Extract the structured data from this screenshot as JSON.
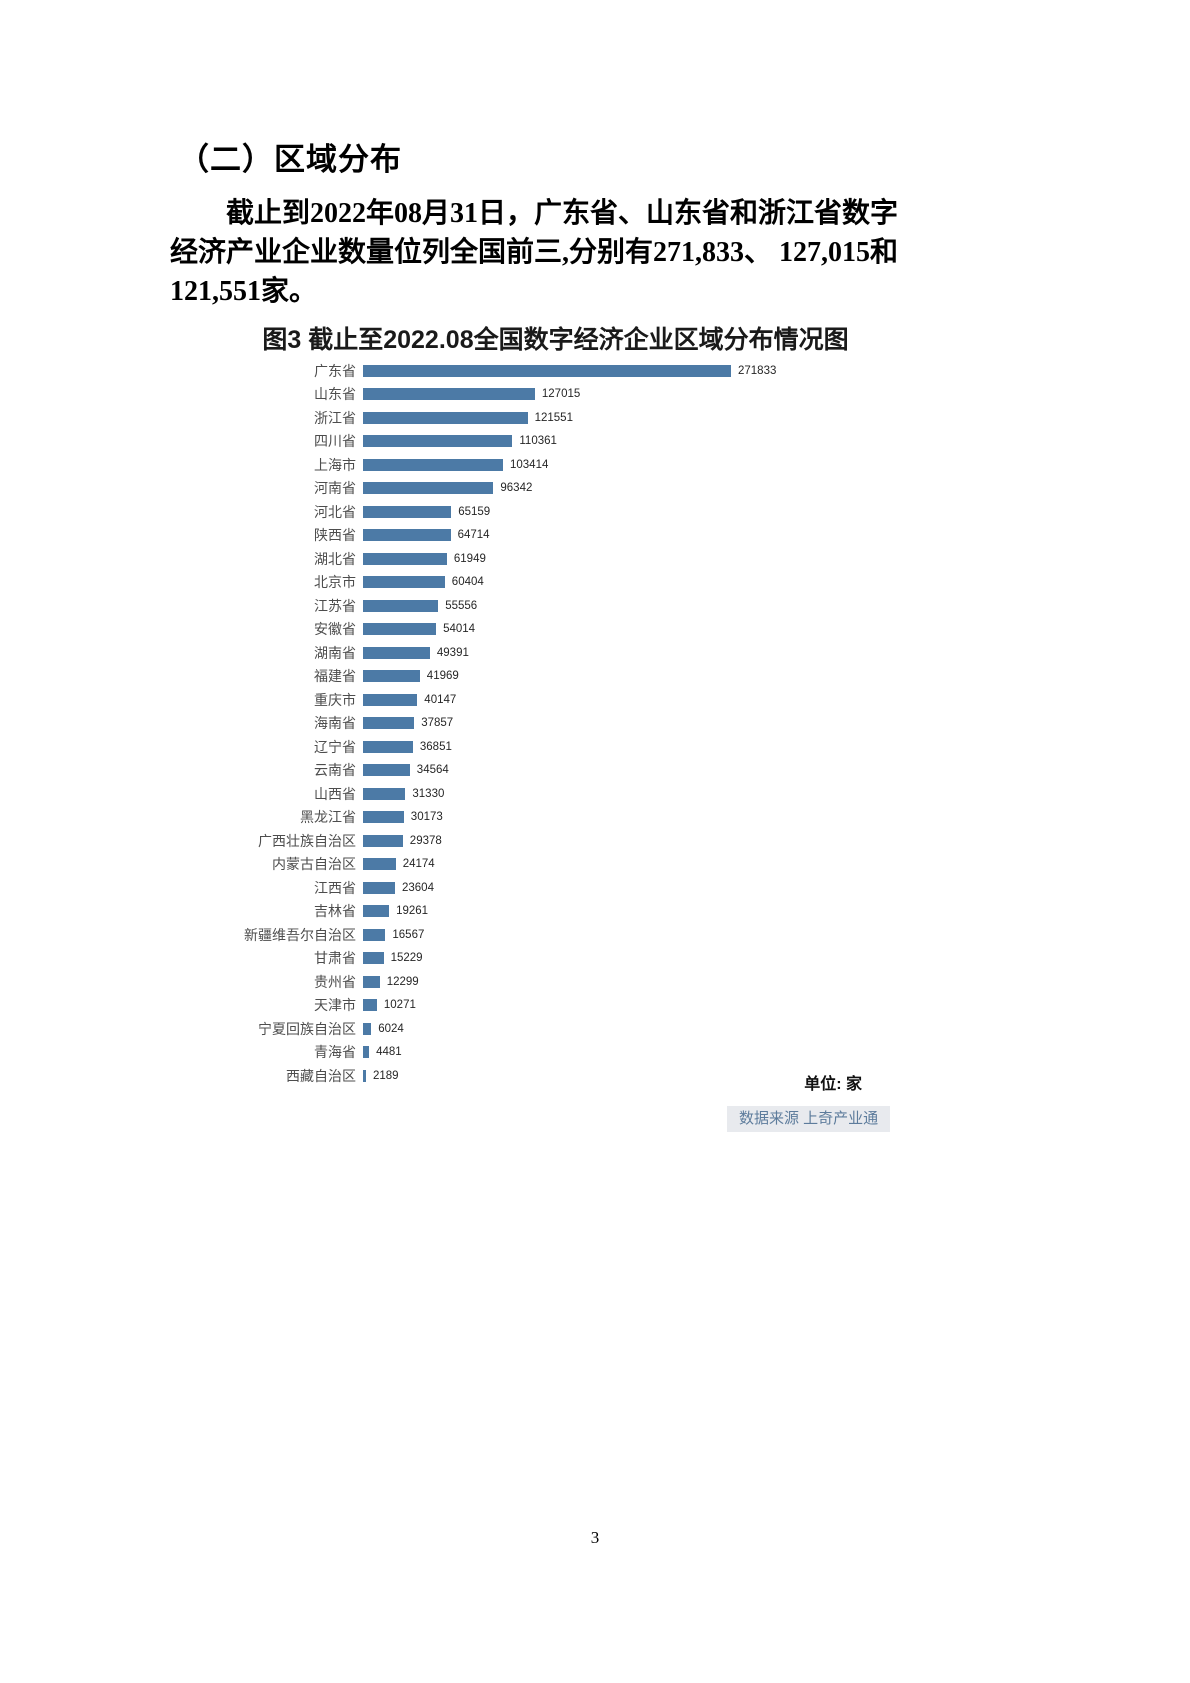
{
  "page": {
    "number": "3"
  },
  "section": {
    "heading": "（二）区域分布",
    "paragraph_lines": [
      "截止到2022年08月31日，广东省、山东省和浙江省数字",
      "经济产业企业数量位列全国前三,分别有271,833、 127,015和",
      "121,551家。"
    ]
  },
  "chart": {
    "title": "图3 截止至2022.08全国数字经济企业区域分布情况图",
    "unit_label": "单位: 家",
    "source_label": "数据来源 上奇产业通",
    "bar_color": "#4c7aa6"
  },
  "chart_data": {
    "type": "bar",
    "orientation": "horizontal",
    "title": "图3 截止至2022.08全国数字经济企业区域分布情况图",
    "categories": [
      "广东省",
      "山东省",
      "浙江省",
      "四川省",
      "上海市",
      "河南省",
      "河北省",
      "陕西省",
      "湖北省",
      "北京市",
      "江苏省",
      "安徽省",
      "湖南省",
      "福建省",
      "重庆市",
      "海南省",
      "辽宁省",
      "云南省",
      "山西省",
      "黑龙江省",
      "广西壮族自治区",
      "内蒙古自治区",
      "江西省",
      "吉林省",
      "新疆维吾尔自治区",
      "甘肃省",
      "贵州省",
      "天津市",
      "宁夏回族自治区",
      "青海省",
      "西藏自治区"
    ],
    "values": [
      271833,
      127015,
      121551,
      110361,
      103414,
      96342,
      65159,
      64714,
      61949,
      60404,
      55556,
      54014,
      49391,
      41969,
      40147,
      37857,
      36851,
      34564,
      31330,
      30173,
      29378,
      24174,
      23604,
      19261,
      16567,
      15229,
      12299,
      10271,
      6024,
      4481,
      2189
    ],
    "unit": "家",
    "xlim": [
      0,
      271833
    ],
    "grid": false,
    "legend": false,
    "value_labels": true,
    "source": "数据来源 上奇产业通"
  }
}
